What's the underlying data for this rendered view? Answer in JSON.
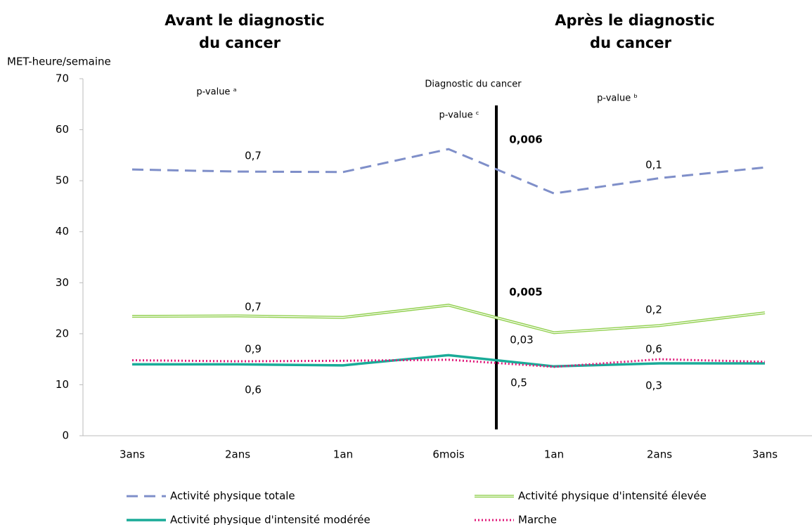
{
  "chart_data": {
    "type": "line",
    "title_left": [
      "Avant le diagnostic",
      "du cancer"
    ],
    "title_right": [
      "Après le diagnostic",
      "du cancer"
    ],
    "y_label": "MET-heure/semaine",
    "categories": [
      "3ans",
      "2ans",
      "1an",
      "6mois",
      "1an",
      "2ans",
      "3ans"
    ],
    "series": [
      {
        "name": "Activité physique totale",
        "color": "#7f8fc9",
        "style": "dashed",
        "values": [
          52.2,
          51.8,
          51.7,
          56.2,
          47.5,
          50.5,
          52.6
        ]
      },
      {
        "name": "Activité physique d'intensité élevée",
        "color": "#92d050",
        "style": "double",
        "values": [
          23.4,
          23.5,
          23.2,
          25.6,
          20.2,
          21.6,
          24.1
        ]
      },
      {
        "name": "Activité physique d'intensité modérée",
        "color": "#1aab98",
        "style": "solid",
        "values": [
          14.0,
          14.0,
          13.8,
          15.8,
          13.6,
          14.2,
          14.2
        ]
      },
      {
        "name": "Marche",
        "color": "#e0197a",
        "style": "dotted",
        "values": [
          14.8,
          14.6,
          14.7,
          14.9,
          13.5,
          15.0,
          14.5
        ]
      }
    ],
    "ylim": [
      0,
      70
    ],
    "yticks": [
      0,
      10,
      20,
      30,
      40,
      50,
      60,
      70
    ],
    "annotations": [
      {
        "text": "p-value ᵃ",
        "bold": false
      },
      {
        "text": "Diagnostic du cancer",
        "bold": false
      },
      {
        "text": "p-value ᶜ",
        "bold": false
      },
      {
        "text": "p-value ᵇ",
        "bold": false
      },
      {
        "text": "0,7",
        "bold": false
      },
      {
        "text": "0,006",
        "bold": true
      },
      {
        "text": "0,1",
        "bold": false
      },
      {
        "text": "0,7",
        "bold": false
      },
      {
        "text": "0,005",
        "bold": true
      },
      {
        "text": "0,2",
        "bold": false
      },
      {
        "text": "0,9",
        "bold": false
      },
      {
        "text": "0,03",
        "bold": false
      },
      {
        "text": "0,6",
        "bold": false
      },
      {
        "text": "0,6",
        "bold": false
      },
      {
        "text": "0,5",
        "bold": false
      },
      {
        "text": "0,3",
        "bold": false
      }
    ]
  }
}
